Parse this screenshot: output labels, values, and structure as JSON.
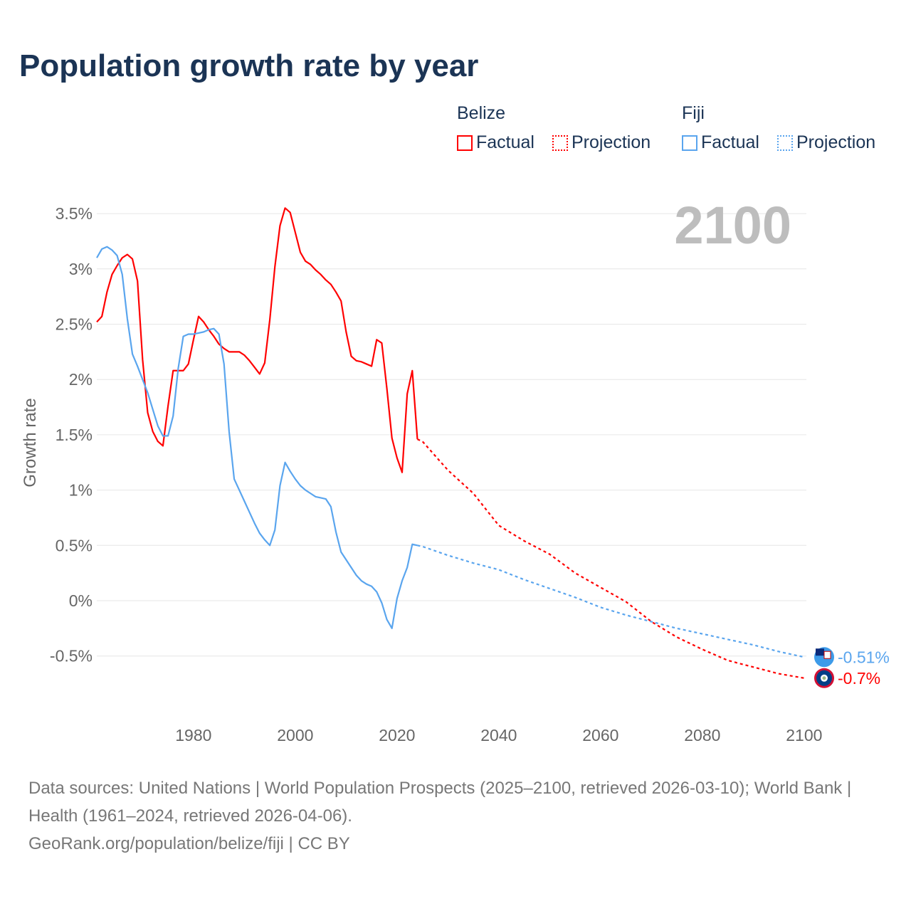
{
  "title": "Population growth rate by year",
  "legend": {
    "groups": [
      {
        "name": "Belize",
        "color": "#ff0000",
        "items": [
          "Factual",
          "Projection"
        ]
      },
      {
        "name": "Fiji",
        "color": "#5aa5ee",
        "items": [
          "Factual",
          "Projection"
        ]
      }
    ]
  },
  "footer": {
    "sources": "Data sources: United Nations | World Population Prospects (2025–2100, retrieved 2026-03-10); World Bank | Health (1961–2024, retrieved 2026-04-06).",
    "credit": "GeoRank.org/population/belize/fiji | CC BY"
  },
  "chart_data": {
    "type": "line",
    "title": "Population growth rate by year",
    "ylabel": "Growth rate",
    "xlabel": "",
    "year_label": "2100",
    "xlim": [
      1961,
      2100
    ],
    "ylim": [
      -1.0,
      3.6
    ],
    "xticks": [
      1980,
      2000,
      2020,
      2040,
      2060,
      2080,
      2100
    ],
    "yticks": [
      {
        "v": 3.5,
        "l": "3.5%"
      },
      {
        "v": 3,
        "l": "3%"
      },
      {
        "v": 2.5,
        "l": "2.5%"
      },
      {
        "v": 2,
        "l": "2%"
      },
      {
        "v": 1.5,
        "l": "1.5%"
      },
      {
        "v": 1,
        "l": "1%"
      },
      {
        "v": 0.5,
        "l": "0.5%"
      },
      {
        "v": 0,
        "l": "0%"
      },
      {
        "v": -0.5,
        "l": "-0.5%"
      }
    ],
    "grid": true,
    "legend_position": "top-right",
    "series": [
      {
        "name": "Belize",
        "color": "#ff0000",
        "end_label": "-0.7%",
        "factual": {
          "start": 1961,
          "values": [
            2.52,
            2.57,
            2.79,
            2.95,
            3.03,
            3.1,
            3.13,
            3.09,
            2.89,
            2.18,
            1.7,
            1.53,
            1.44,
            1.4,
            1.76,
            2.08,
            2.08,
            2.08,
            2.14,
            2.36,
            2.57,
            2.52,
            2.45,
            2.39,
            2.32,
            2.28,
            2.25,
            2.25,
            2.25,
            2.22,
            2.17,
            2.11,
            2.05,
            2.15,
            2.54,
            3.02,
            3.39,
            3.55,
            3.51,
            3.33,
            3.15,
            3.07,
            3.04,
            2.99,
            2.95,
            2.9,
            2.86,
            2.79,
            2.71,
            2.43,
            2.21,
            2.17,
            2.16,
            2.14,
            2.12,
            2.36,
            2.33,
            1.92,
            1.47,
            1.29,
            1.16,
            1.87,
            2.08,
            1.46
          ]
        },
        "projection": {
          "x": [
            2024,
            2025,
            2030,
            2035,
            2040,
            2045,
            2050,
            2055,
            2060,
            2065,
            2070,
            2075,
            2080,
            2085,
            2090,
            2095,
            2100
          ],
          "values": [
            1.46,
            1.44,
            1.18,
            0.97,
            0.68,
            0.54,
            0.42,
            0.25,
            0.12,
            -0.01,
            -0.19,
            -0.33,
            -0.44,
            -0.54,
            -0.6,
            -0.66,
            -0.7
          ]
        }
      },
      {
        "name": "Fiji",
        "color": "#5aa5ee",
        "end_label": "-0.51%",
        "factual": {
          "start": 1961,
          "values": [
            3.1,
            3.18,
            3.2,
            3.17,
            3.12,
            2.95,
            2.55,
            2.23,
            2.12,
            2.0,
            1.88,
            1.73,
            1.58,
            1.49,
            1.49,
            1.67,
            2.1,
            2.39,
            2.41,
            2.41,
            2.42,
            2.43,
            2.45,
            2.46,
            2.41,
            2.14,
            1.53,
            1.1,
            1.0,
            0.9,
            0.8,
            0.7,
            0.61,
            0.55,
            0.5,
            0.64,
            1.04,
            1.25,
            1.17,
            1.1,
            1.04,
            1.0,
            0.97,
            0.94,
            0.93,
            0.92,
            0.85,
            0.62,
            0.44,
            0.37,
            0.3,
            0.23,
            0.18,
            0.15,
            0.13,
            0.08,
            -0.02,
            -0.17,
            -0.25,
            0.02,
            0.18,
            0.3,
            0.51,
            0.5
          ]
        },
        "projection": {
          "x": [
            2024,
            2025,
            2030,
            2035,
            2040,
            2045,
            2050,
            2055,
            2060,
            2065,
            2070,
            2075,
            2080,
            2085,
            2090,
            2095,
            2100
          ],
          "values": [
            0.5,
            0.49,
            0.41,
            0.34,
            0.28,
            0.19,
            0.11,
            0.03,
            -0.06,
            -0.13,
            -0.19,
            -0.25,
            -0.3,
            -0.35,
            -0.4,
            -0.46,
            -0.51
          ]
        }
      }
    ]
  }
}
